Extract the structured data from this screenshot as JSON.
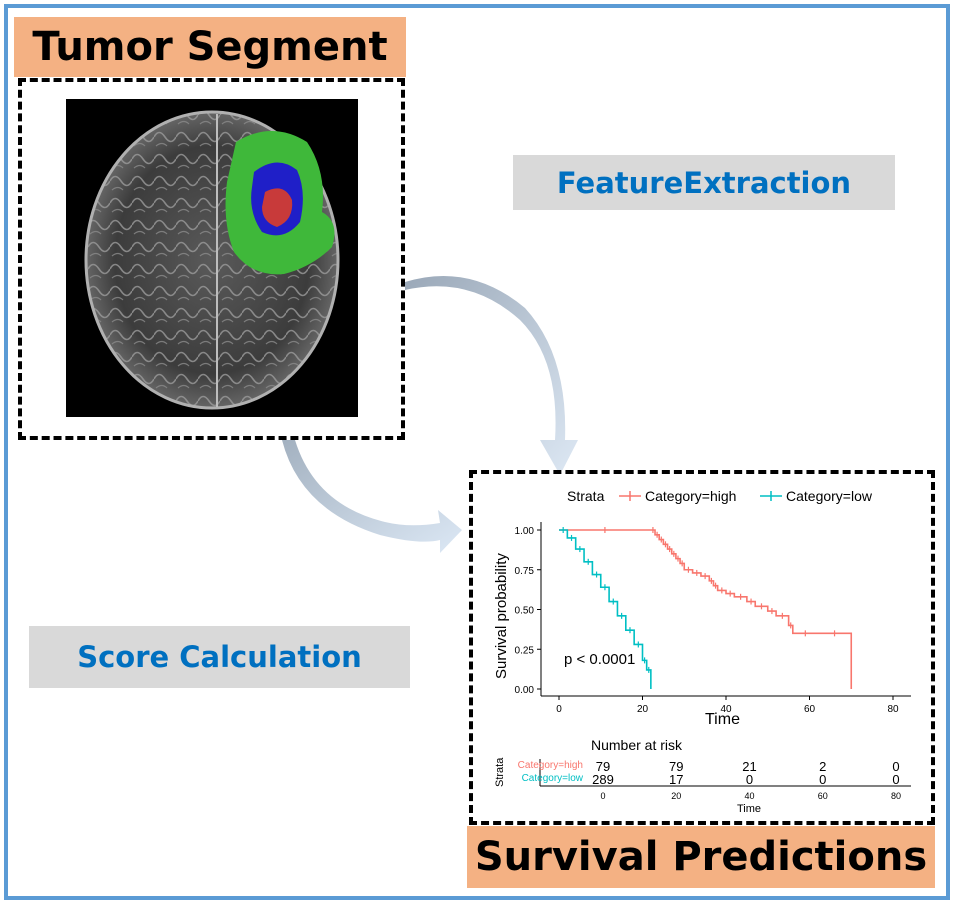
{
  "titles": {
    "tumor_segment": "Tumor Segment",
    "survival_predictions": "Survival Predictions"
  },
  "labels": {
    "feature_extraction": "FeatureExtraction",
    "score_calculation": "Score Calculation"
  },
  "colors": {
    "title_bg": "#f4b183",
    "label_bg": "#d9d9d9",
    "label_text": "#0070c0",
    "frame_border": "#5b9bd5",
    "high": "#f8766d",
    "low": "#00bfc4",
    "tumor_edema": "#3fb83a",
    "tumor_enhancing": "#1f1fc8",
    "tumor_necrosis": "#c83a3a"
  },
  "chart_data": {
    "type": "line",
    "legend_title": "Strata",
    "legend_position": "top",
    "xlabel": "Time",
    "ylabel": "Survival probability",
    "xlim": [
      0,
      80
    ],
    "ylim": [
      0,
      1
    ],
    "x_ticks": [
      "0",
      "20",
      "40",
      "60",
      "80"
    ],
    "y_ticks": [
      "0.00",
      "0.25",
      "0.50",
      "0.75",
      "1.00"
    ],
    "annotation": "p < 0.0001",
    "series": [
      {
        "name": "Category=high",
        "step_points": [
          [
            0,
            1.0
          ],
          [
            22,
            1.0
          ],
          [
            23,
            0.97
          ],
          [
            24,
            0.94
          ],
          [
            25,
            0.91
          ],
          [
            26,
            0.88
          ],
          [
            27,
            0.85
          ],
          [
            28,
            0.82
          ],
          [
            29,
            0.79
          ],
          [
            30,
            0.75
          ],
          [
            32,
            0.73
          ],
          [
            34,
            0.71
          ],
          [
            36,
            0.68
          ],
          [
            37,
            0.65
          ],
          [
            38,
            0.62
          ],
          [
            40,
            0.6
          ],
          [
            42,
            0.58
          ],
          [
            45,
            0.55
          ],
          [
            47,
            0.52
          ],
          [
            50,
            0.49
          ],
          [
            52,
            0.46
          ],
          [
            55,
            0.4
          ],
          [
            56,
            0.35
          ],
          [
            62,
            0.35
          ],
          [
            70,
            0.0
          ]
        ]
      },
      {
        "name": "Category=low",
        "step_points": [
          [
            0,
            1.0
          ],
          [
            2,
            0.95
          ],
          [
            4,
            0.88
          ],
          [
            6,
            0.8
          ],
          [
            8,
            0.72
          ],
          [
            10,
            0.64
          ],
          [
            12,
            0.55
          ],
          [
            14,
            0.46
          ],
          [
            16,
            0.37
          ],
          [
            18,
            0.28
          ],
          [
            20,
            0.18
          ],
          [
            21,
            0.12
          ],
          [
            22,
            0.0
          ]
        ]
      }
    ],
    "risk_table": {
      "title": "Number at risk",
      "strata_label": "Strata",
      "xlabel": "Time",
      "x_ticks": [
        "0",
        "20",
        "40",
        "60",
        "80"
      ],
      "rows": [
        {
          "name": "Category=high",
          "counts": [
            "79",
            "79",
            "21",
            "2",
            "0"
          ]
        },
        {
          "name": "Category=low",
          "counts": [
            "289",
            "17",
            "0",
            "0",
            "0"
          ]
        }
      ]
    }
  }
}
